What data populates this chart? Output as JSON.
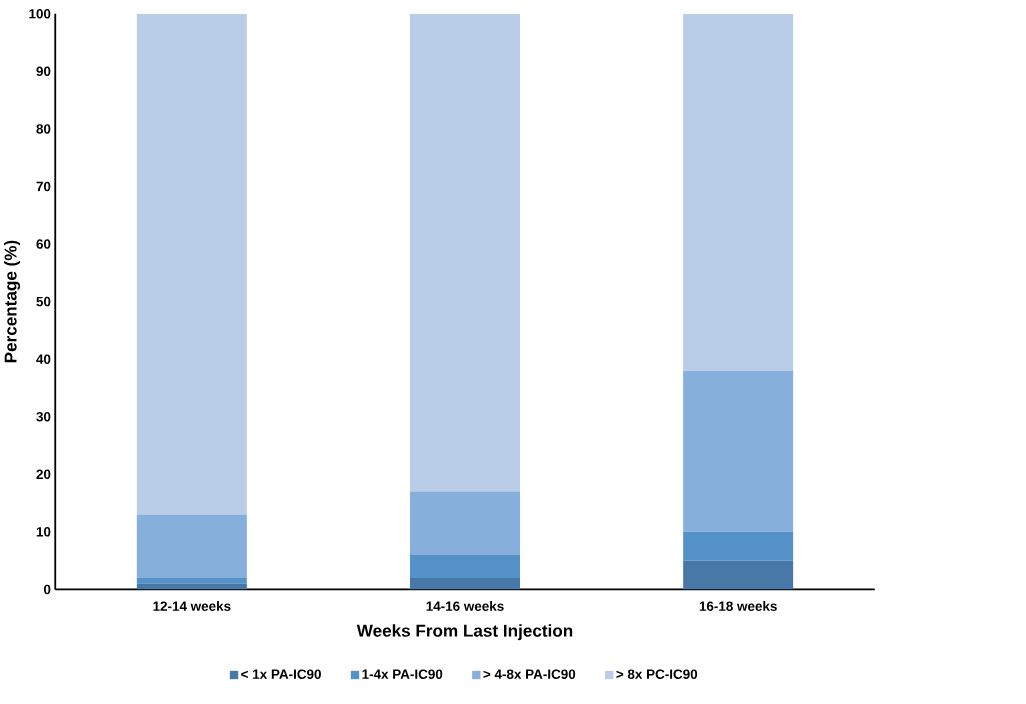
{
  "chart_data": {
    "type": "bar",
    "stacked": true,
    "xlabel": "Weeks From Last Injection",
    "ylabel": "Percentage (%)",
    "categories": [
      "12-14 weeks",
      "14-16 weeks",
      "16-18 weeks"
    ],
    "series": [
      {
        "name": "< 1x PA-IC90",
        "color": "#4778a8",
        "values": [
          1,
          2,
          5
        ]
      },
      {
        "name": "1-4x PA-IC90",
        "color": "#5592c8",
        "values": [
          1,
          4,
          5
        ]
      },
      {
        "name": "> 4-8x PA-IC90",
        "color": "#86afdc",
        "values": [
          11,
          11,
          28
        ]
      },
      {
        "name": "> 8x PC-IC90",
        "color": "#b9cde8",
        "values": [
          87,
          83,
          62
        ]
      }
    ],
    "ylim": [
      0,
      100
    ],
    "yticks": [
      0,
      10,
      20,
      30,
      40,
      50,
      60,
      70,
      80,
      90,
      100
    ],
    "legend": "bottom"
  }
}
